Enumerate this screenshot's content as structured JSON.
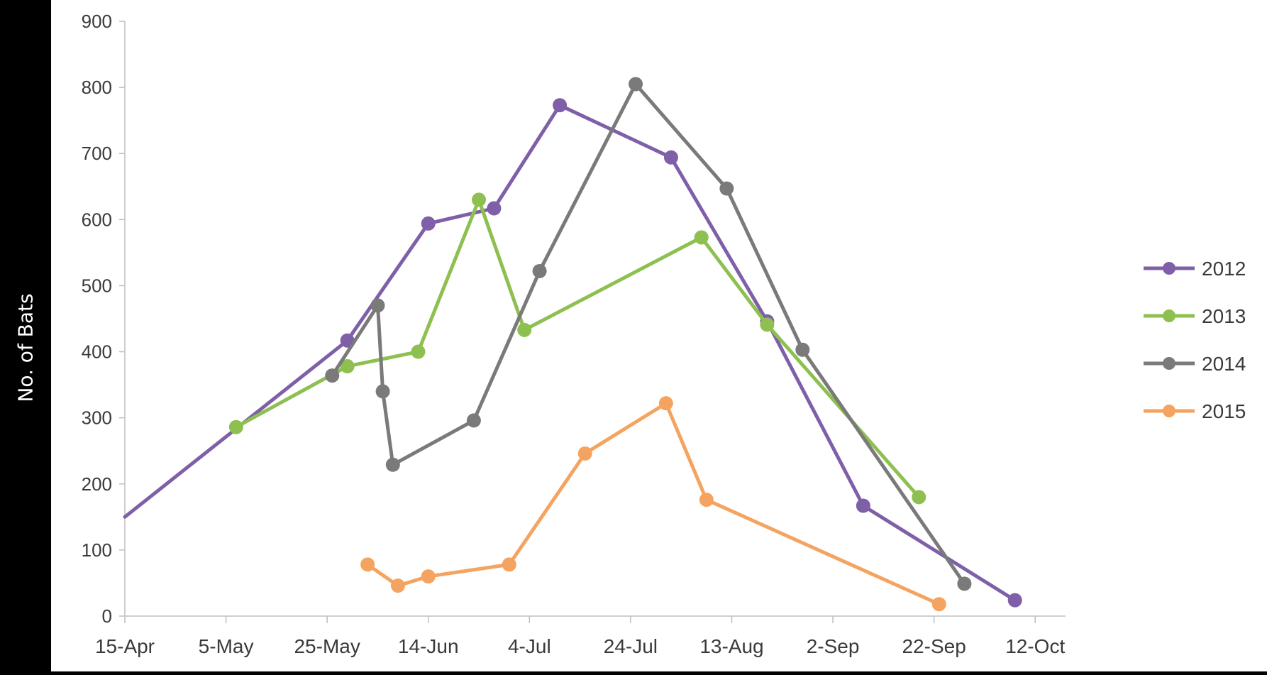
{
  "chart_data": {
    "type": "line",
    "title": "",
    "xlabel": "",
    "ylabel": "No. of Bats",
    "x_axis": {
      "type": "date",
      "ticks": [
        "2015-04-15",
        "2015-05-05",
        "2015-05-25",
        "2015-06-14",
        "2015-07-04",
        "2015-07-24",
        "2015-08-13",
        "2015-09-02",
        "2015-09-22",
        "2015-10-12"
      ],
      "tick_labels": [
        "15-Apr",
        "5-May",
        "25-May",
        "14-Jun",
        "4-Jul",
        "24-Jul",
        "13-Aug",
        "2-Sep",
        "22-Sep",
        "12-Oct"
      ],
      "range": [
        "2015-04-15",
        "2015-10-18"
      ]
    },
    "y_axis": {
      "range": [
        0,
        900
      ],
      "ticks": [
        0,
        100,
        200,
        300,
        400,
        500,
        600,
        700,
        800,
        900
      ],
      "tick_labels": [
        "0",
        "100",
        "200",
        "300",
        "400",
        "500",
        "600",
        "700",
        "800",
        "900"
      ]
    },
    "grid": false,
    "legend": {
      "position": "right",
      "entries": [
        "2012",
        "2013",
        "2014",
        "2015"
      ]
    },
    "series": [
      {
        "name": "2012",
        "color": "#7f5fa8",
        "show_start_marker": false,
        "points": [
          {
            "x": "2015-04-15",
            "y": 150
          },
          {
            "x": "2015-05-29",
            "y": 417
          },
          {
            "x": "2015-06-14",
            "y": 594
          },
          {
            "x": "2015-06-27",
            "y": 617
          },
          {
            "x": "2015-07-10",
            "y": 773
          },
          {
            "x": "2015-08-01",
            "y": 694
          },
          {
            "x": "2015-08-20",
            "y": 446
          },
          {
            "x": "2015-09-08",
            "y": 167
          },
          {
            "x": "2015-10-08",
            "y": 24
          }
        ]
      },
      {
        "name": "2013",
        "color": "#8dc050",
        "points": [
          {
            "x": "2015-05-07",
            "y": 286
          },
          {
            "x": "2015-05-29",
            "y": 378
          },
          {
            "x": "2015-06-12",
            "y": 400
          },
          {
            "x": "2015-06-24",
            "y": 630
          },
          {
            "x": "2015-07-03",
            "y": 433
          },
          {
            "x": "2015-08-07",
            "y": 573
          },
          {
            "x": "2015-08-20",
            "y": 441
          },
          {
            "x": "2015-09-19",
            "y": 180
          }
        ]
      },
      {
        "name": "2014",
        "color": "#7a7a7a",
        "points": [
          {
            "x": "2015-05-26",
            "y": 364
          },
          {
            "x": "2015-06-04",
            "y": 470
          },
          {
            "x": "2015-06-05",
            "y": 340
          },
          {
            "x": "2015-06-07",
            "y": 229
          },
          {
            "x": "2015-06-23",
            "y": 296
          },
          {
            "x": "2015-07-06",
            "y": 522
          },
          {
            "x": "2015-07-25",
            "y": 805
          },
          {
            "x": "2015-08-12",
            "y": 647
          },
          {
            "x": "2015-08-27",
            "y": 403
          },
          {
            "x": "2015-09-28",
            "y": 49
          }
        ]
      },
      {
        "name": "2015",
        "color": "#f4a460",
        "points": [
          {
            "x": "2015-06-02",
            "y": 78
          },
          {
            "x": "2015-06-08",
            "y": 46
          },
          {
            "x": "2015-06-14",
            "y": 60
          },
          {
            "x": "2015-06-30",
            "y": 78
          },
          {
            "x": "2015-07-15",
            "y": 246
          },
          {
            "x": "2015-07-31",
            "y": 322
          },
          {
            "x": "2015-08-08",
            "y": 176
          },
          {
            "x": "2015-09-23",
            "y": 18
          }
        ]
      }
    ]
  }
}
